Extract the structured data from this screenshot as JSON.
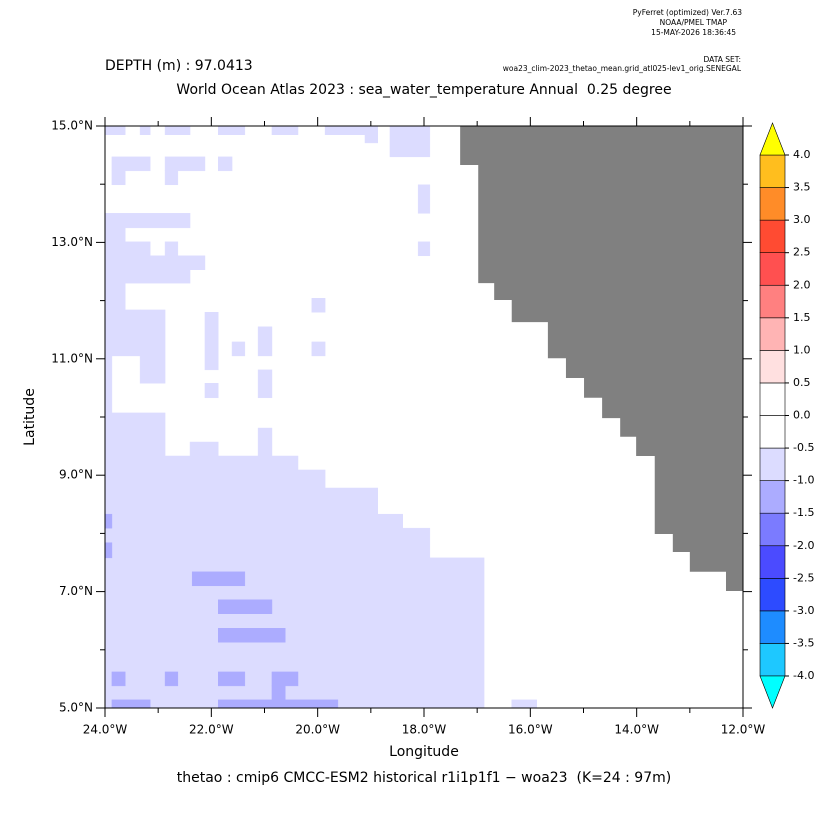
{
  "header": {
    "software": "PyFerret (optimized) Ver.7.63",
    "org": "NOAA/PMEL TMAP",
    "timestamp": "15-MAY-2026 18:36:45",
    "dataset_label": "DATA SET:",
    "dataset": "woa23_clim-2023_thetao_mean.grid_atl025-lev1_orig.SENEGAL"
  },
  "chart_data": {
    "type": "heatmap",
    "depth_label": "DEPTH (m) : 97.0413",
    "title": "World Ocean Atlas 2023 : sea_water_temperature Annual  0.25 degree",
    "caption": "thetao : cmip6 CMCC-ESM2 historical r1i1p1f1 − woa23  (K=24 : 97m)",
    "x_label": "Longitude",
    "y_label": "Latitude",
    "xlim": [
      -24,
      -12
    ],
    "ylim": [
      5,
      15
    ],
    "xticks": [
      {
        "value": -24,
        "label": "24.0°W"
      },
      {
        "value": -22,
        "label": "22.0°W"
      },
      {
        "value": -20,
        "label": "20.0°W"
      },
      {
        "value": -18,
        "label": "18.0°W"
      },
      {
        "value": -16,
        "label": "16.0°W"
      },
      {
        "value": -14,
        "label": "14.0°W"
      },
      {
        "value": -12,
        "label": "12.0°W"
      }
    ],
    "xminorticks": [
      -23,
      -21,
      -19,
      -17,
      -15,
      -13
    ],
    "yticks": [
      {
        "value": 5,
        "label": "5.0°N"
      },
      {
        "value": 7,
        "label": "7.0°N"
      },
      {
        "value": 9,
        "label": "9.0°N"
      },
      {
        "value": 11,
        "label": "11.0°N"
      },
      {
        "value": 13,
        "label": "13.0°N"
      },
      {
        "value": 15,
        "label": "15.0°N"
      }
    ],
    "yminorticks": [
      6,
      8,
      10,
      12,
      14
    ],
    "background_color": "#ffffff",
    "land_color": "#808080",
    "colorbar": {
      "levels": [
        {
          "value": -4,
          "label": "-4.0"
        },
        {
          "value": -3.5,
          "label": "-3.5"
        },
        {
          "value": -3,
          "label": "-3.0"
        },
        {
          "value": -2.5,
          "label": "-2.5"
        },
        {
          "value": -2,
          "label": "-2.0"
        },
        {
          "value": -1.5,
          "label": "-1.5"
        },
        {
          "value": -1,
          "label": "-1.0"
        },
        {
          "value": -0.5,
          "label": "-0.5"
        },
        {
          "value": 0,
          "label": "0.0"
        },
        {
          "value": 0.5,
          "label": "0.5"
        },
        {
          "value": 1,
          "label": "1.0"
        },
        {
          "value": 1.5,
          "label": "1.5"
        },
        {
          "value": 2,
          "label": "2.0"
        },
        {
          "value": 2.5,
          "label": "2.5"
        },
        {
          "value": 3,
          "label": "3.0"
        },
        {
          "value": 3.5,
          "label": "3.5"
        },
        {
          "value": 4,
          "label": "4.0"
        }
      ],
      "colors": [
        "#1ec8ff",
        "#1e8cff",
        "#2d4bff",
        "#4b4bff",
        "#7b7bff",
        "#acacff",
        "#dcdcff",
        "#ffffff",
        "#ffffff",
        "#ffe0e0",
        "#ffb4b4",
        "#ff8080",
        "#ff5050",
        "#ff4b32",
        "#ff8c28",
        "#ffbe1e"
      ],
      "under_color": "#00ffff",
      "over_color": "#ffff00"
    },
    "land": [
      [
        -17.32,
        15
      ],
      [
        -12,
        15
      ],
      [
        -12,
        7.01
      ],
      [
        -12.32,
        7.01
      ],
      [
        -12.32,
        7.34
      ],
      [
        -13,
        7.34
      ],
      [
        -13,
        7.68
      ],
      [
        -13.32,
        7.68
      ],
      [
        -13.32,
        7.99
      ],
      [
        -13.66,
        7.99
      ],
      [
        -13.66,
        9.33
      ],
      [
        -14.01,
        9.33
      ],
      [
        -14.01,
        9.66
      ],
      [
        -14.31,
        9.66
      ],
      [
        -14.31,
        9.98
      ],
      [
        -14.65,
        9.98
      ],
      [
        -14.65,
        10.33
      ],
      [
        -14.99,
        10.33
      ],
      [
        -14.99,
        10.67
      ],
      [
        -15.33,
        10.67
      ],
      [
        -15.33,
        11.01
      ],
      [
        -15.67,
        11.01
      ],
      [
        -15.67,
        11.63
      ],
      [
        -16.35,
        11.63
      ],
      [
        -16.35,
        12.01
      ],
      [
        -16.68,
        12.01
      ],
      [
        -16.68,
        12.3
      ],
      [
        -16.98,
        12.3
      ],
      [
        -16.98,
        14.33
      ],
      [
        -17.32,
        14.33
      ]
    ],
    "cells": [
      {
        "lon": [
          -24,
          -16.87
        ],
        "lat": [
          5,
          7.58
        ],
        "value": -0.7
      },
      {
        "lon": [
          -24,
          -17.89
        ],
        "lat": [
          7.58,
          8.09
        ],
        "value": -0.7
      },
      {
        "lon": [
          -24,
          -18.4
        ],
        "lat": [
          8.09,
          8.33
        ],
        "value": -0.7
      },
      {
        "lon": [
          -24,
          -18.87
        ],
        "lat": [
          8.33,
          8.78
        ],
        "value": -0.7
      },
      {
        "lon": [
          -24,
          -19.86
        ],
        "lat": [
          8.78,
          9.09
        ],
        "value": -0.7
      },
      {
        "lon": [
          -24,
          -20.37
        ],
        "lat": [
          9.09,
          9.33
        ],
        "value": -0.7
      },
      {
        "lon": [
          -24,
          -22.87
        ],
        "lat": [
          9.33,
          10.07
        ],
        "value": -0.7
      },
      {
        "lon": [
          -22.4,
          -21.87
        ],
        "lat": [
          9.33,
          9.57
        ],
        "value": -0.7
      },
      {
        "lon": [
          -21.12,
          -20.86
        ],
        "lat": [
          9.33,
          9.81
        ],
        "value": -0.7
      },
      {
        "lon": [
          -24,
          -23.87
        ],
        "lat": [
          10.07,
          11.84
        ],
        "value": -0.7
      },
      {
        "lon": [
          -23.34,
          -22.87
        ],
        "lat": [
          10.58,
          11.84
        ],
        "value": -0.7
      },
      {
        "lon": [
          -23.87,
          -23.34
        ],
        "lat": [
          11.05,
          11.84
        ],
        "value": -0.7
      },
      {
        "lon": [
          -24,
          -23.62
        ],
        "lat": [
          11.84,
          12.3
        ],
        "value": -0.7
      },
      {
        "lon": [
          -24,
          -22.4
        ],
        "lat": [
          12.3,
          12.53
        ],
        "value": -0.7
      },
      {
        "lon": [
          -24,
          -22.12
        ],
        "lat": [
          12.53,
          12.77
        ],
        "value": -0.7
      },
      {
        "lon": [
          -24,
          -23.62
        ],
        "lat": [
          12.77,
          13.25
        ],
        "value": -0.7
      },
      {
        "lon": [
          -23.62,
          -23.15
        ],
        "lat": [
          12.77,
          13.01
        ],
        "value": -0.7
      },
      {
        "lon": [
          -22.87,
          -22.63
        ],
        "lat": [
          12.77,
          13.01
        ],
        "value": -0.7
      },
      {
        "lon": [
          -24,
          -22.4
        ],
        "lat": [
          13.25,
          13.5
        ],
        "value": -0.7
      },
      {
        "lon": [
          -23.87,
          -23.15
        ],
        "lat": [
          14.23,
          14.47
        ],
        "value": -0.7
      },
      {
        "lon": [
          -23.87,
          -23.62
        ],
        "lat": [
          13.99,
          14.23
        ],
        "value": -0.7
      },
      {
        "lon": [
          -22.87,
          -22.12
        ],
        "lat": [
          14.23,
          14.47
        ],
        "value": -0.7
      },
      {
        "lon": [
          -22.87,
          -22.63
        ],
        "lat": [
          13.99,
          14.23
        ],
        "value": -0.7
      },
      {
        "lon": [
          -21.87,
          -21.61
        ],
        "lat": [
          14.23,
          14.47
        ],
        "value": -0.7
      },
      {
        "lon": [
          -24,
          -23.62
        ],
        "lat": [
          14.85,
          15
        ],
        "value": -0.7
      },
      {
        "lon": [
          -23.34,
          -23.15
        ],
        "lat": [
          14.85,
          15
        ],
        "value": -0.7
      },
      {
        "lon": [
          -22.87,
          -22.4
        ],
        "lat": [
          14.85,
          15
        ],
        "value": -0.7
      },
      {
        "lon": [
          -21.87,
          -21.37
        ],
        "lat": [
          14.85,
          15
        ],
        "value": -0.7
      },
      {
        "lon": [
          -20.86,
          -20.37
        ],
        "lat": [
          14.85,
          15
        ],
        "value": -0.7
      },
      {
        "lon": [
          -19.86,
          -19.11
        ],
        "lat": [
          14.85,
          15
        ],
        "value": -0.7
      },
      {
        "lon": [
          -19.11,
          -18.87
        ],
        "lat": [
          14.71,
          15
        ],
        "value": -0.7
      },
      {
        "lon": [
          -18.64,
          -17.89
        ],
        "lat": [
          14.47,
          15
        ],
        "value": -0.7
      },
      {
        "lon": [
          -18.11,
          -17.89
        ],
        "lat": [
          13.5,
          13.99
        ],
        "value": -0.7
      },
      {
        "lon": [
          -18.11,
          -17.89
        ],
        "lat": [
          12.77,
          13.01
        ],
        "value": -0.7
      },
      {
        "lon": [
          -20.11,
          -19.86
        ],
        "lat": [
          11.8,
          12.04
        ],
        "value": -0.7
      },
      {
        "lon": [
          -20.11,
          -19.86
        ],
        "lat": [
          11.05,
          11.29
        ],
        "value": -0.7
      },
      {
        "lon": [
          -22.12,
          -21.87
        ],
        "lat": [
          10.81,
          11.8
        ],
        "value": -0.7
      },
      {
        "lon": [
          -21.12,
          -20.86
        ],
        "lat": [
          11.05,
          11.55
        ],
        "value": -0.7
      },
      {
        "lon": [
          -21.61,
          -21.37
        ],
        "lat": [
          11.05,
          11.29
        ],
        "value": -0.7
      },
      {
        "lon": [
          -21.12,
          -20.86
        ],
        "lat": [
          10.33,
          10.81
        ],
        "value": -0.7
      },
      {
        "lon": [
          -22.12,
          -21.87
        ],
        "lat": [
          10.33,
          10.58
        ],
        "value": -0.7
      },
      {
        "lon": [
          -16.35,
          -15.88
        ],
        "lat": [
          5,
          5.14
        ],
        "value": -0.7
      },
      {
        "lon": [
          -24,
          -23.87
        ],
        "lat": [
          8.09,
          8.33
        ],
        "value": -1.2
      },
      {
        "lon": [
          -24,
          -23.87
        ],
        "lat": [
          7.58,
          7.84
        ],
        "value": -1.2
      },
      {
        "lon": [
          -22.36,
          -21.37
        ],
        "lat": [
          7.1,
          7.34
        ],
        "value": -1.2
      },
      {
        "lon": [
          -21.87,
          -20.86
        ],
        "lat": [
          6.62,
          6.86
        ],
        "value": -1.2
      },
      {
        "lon": [
          -21.87,
          -20.61
        ],
        "lat": [
          6.13,
          6.37
        ],
        "value": -1.2
      },
      {
        "lon": [
          -23.87,
          -23.62
        ],
        "lat": [
          5.38,
          5.62
        ],
        "value": -1.2
      },
      {
        "lon": [
          -22.87,
          -22.63
        ],
        "lat": [
          5.38,
          5.62
        ],
        "value": -1.2
      },
      {
        "lon": [
          -21.87,
          -21.37
        ],
        "lat": [
          5.38,
          5.62
        ],
        "value": -1.2
      },
      {
        "lon": [
          -20.86,
          -20.37
        ],
        "lat": [
          5.38,
          5.62
        ],
        "value": -1.2
      },
      {
        "lon": [
          -20.86,
          -20.61
        ],
        "lat": [
          5.14,
          5.38
        ],
        "value": -1.2
      },
      {
        "lon": [
          -23.87,
          -23.15
        ],
        "lat": [
          5,
          5.14
        ],
        "value": -1.2
      },
      {
        "lon": [
          -21.87,
          -19.62
        ],
        "lat": [
          5,
          5.14
        ],
        "value": -1.2
      }
    ]
  }
}
